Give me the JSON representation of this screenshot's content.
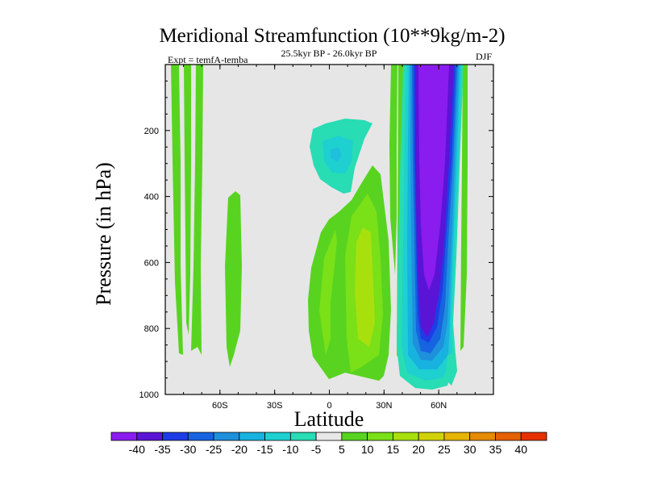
{
  "chart_data": {
    "type": "heatmap",
    "title": "Meridional Streamfunction (10**9kg/m-2)",
    "subtitle": "25.5kyr BP - 26.0kyr BP",
    "left_label": "Expt = temfA-temba",
    "right_label": "DJF",
    "xlabel": "Latitude",
    "ylabel": "Pressure (in hPa)",
    "xlim": [
      -90,
      90
    ],
    "ylim": [
      1000,
      0
    ],
    "x_ticks": [
      {
        "value": -60,
        "label": "60S"
      },
      {
        "value": -30,
        "label": "30S"
      },
      {
        "value": 0,
        "label": "0"
      },
      {
        "value": 30,
        "label": "30N"
      },
      {
        "value": 60,
        "label": "60N"
      }
    ],
    "y_ticks": [
      {
        "value": 200,
        "label": "200"
      },
      {
        "value": 400,
        "label": "400"
      },
      {
        "value": 600,
        "label": "600"
      },
      {
        "value": 800,
        "label": "800"
      },
      {
        "value": 1000,
        "label": "1000"
      }
    ],
    "background_color": "#e6e6e6",
    "colorbar": {
      "labels": [
        "-40",
        "-35",
        "-30",
        "-25",
        "-20",
        "-15",
        "-10",
        "-5",
        "5",
        "10",
        "15",
        "20",
        "25",
        "30",
        "35",
        "40"
      ],
      "levels": [
        -40,
        -35,
        -30,
        -25,
        -20,
        -15,
        -10,
        -5,
        5,
        10,
        15,
        20,
        25,
        30,
        35,
        40
      ],
      "colors": [
        "#8a1cf0",
        "#5a14d6",
        "#1e3ce6",
        "#1664e0",
        "#1e90dc",
        "#18b2e0",
        "#1ed0d0",
        "#28dcb4",
        "#e8e8e8",
        "#58d420",
        "#7ae018",
        "#a8e00e",
        "#d2d20a",
        "#e6b404",
        "#e68a00",
        "#e66000",
        "#e63000"
      ]
    },
    "contour_regions": [
      {
        "name": "sh-high-lat-bands",
        "value_range": [
          5,
          10
        ],
        "lat_range": [
          -85,
          -68
        ],
        "pressure_range": [
          0,
          880
        ],
        "color": "#58d420"
      },
      {
        "name": "sh-midlat-band",
        "value_range": [
          5,
          10
        ],
        "lat_range": [
          -55,
          -50
        ],
        "pressure_range": [
          380,
          910
        ],
        "color": "#58d420"
      },
      {
        "name": "upper-trop-neg-cell",
        "value_range": [
          -10,
          -5
        ],
        "lat_range": [
          -5,
          24
        ],
        "pressure_range": [
          160,
          310
        ],
        "color": "#28dcb4"
      },
      {
        "name": "upper-trop-neg-core",
        "value_range": [
          -15,
          -10
        ],
        "lat_range": [
          -2,
          10
        ],
        "pressure_range": [
          200,
          290
        ],
        "color": "#1ed0d0"
      },
      {
        "name": "tropical-pos-cell",
        "value_range": [
          5,
          20
        ],
        "lat_range": [
          -10,
          40
        ],
        "pressure_range": [
          200,
          980
        ],
        "color": "#7ae018"
      },
      {
        "name": "tropical-pos-core",
        "value_range": [
          15,
          20
        ],
        "lat_range": [
          10,
          20
        ],
        "pressure_range": [
          500,
          780
        ],
        "color": "#a8e00e"
      },
      {
        "name": "nh-narrow-bands",
        "value_range": [
          5,
          10
        ],
        "lat_range": [
          36,
          41
        ],
        "pressure_range": [
          0,
          920
        ],
        "color": "#58d420"
      },
      {
        "name": "nh-strong-neg-cell",
        "value_range": [
          -45,
          -5
        ],
        "lat_range": [
          42,
          78
        ],
        "pressure_range": [
          0,
          980
        ],
        "color": "#5a14d6"
      },
      {
        "name": "nh-high-lat-band",
        "value_range": [
          5,
          10
        ],
        "lat_range": [
          72,
          76
        ],
        "pressure_range": [
          0,
          860
        ],
        "color": "#58d420"
      }
    ]
  }
}
